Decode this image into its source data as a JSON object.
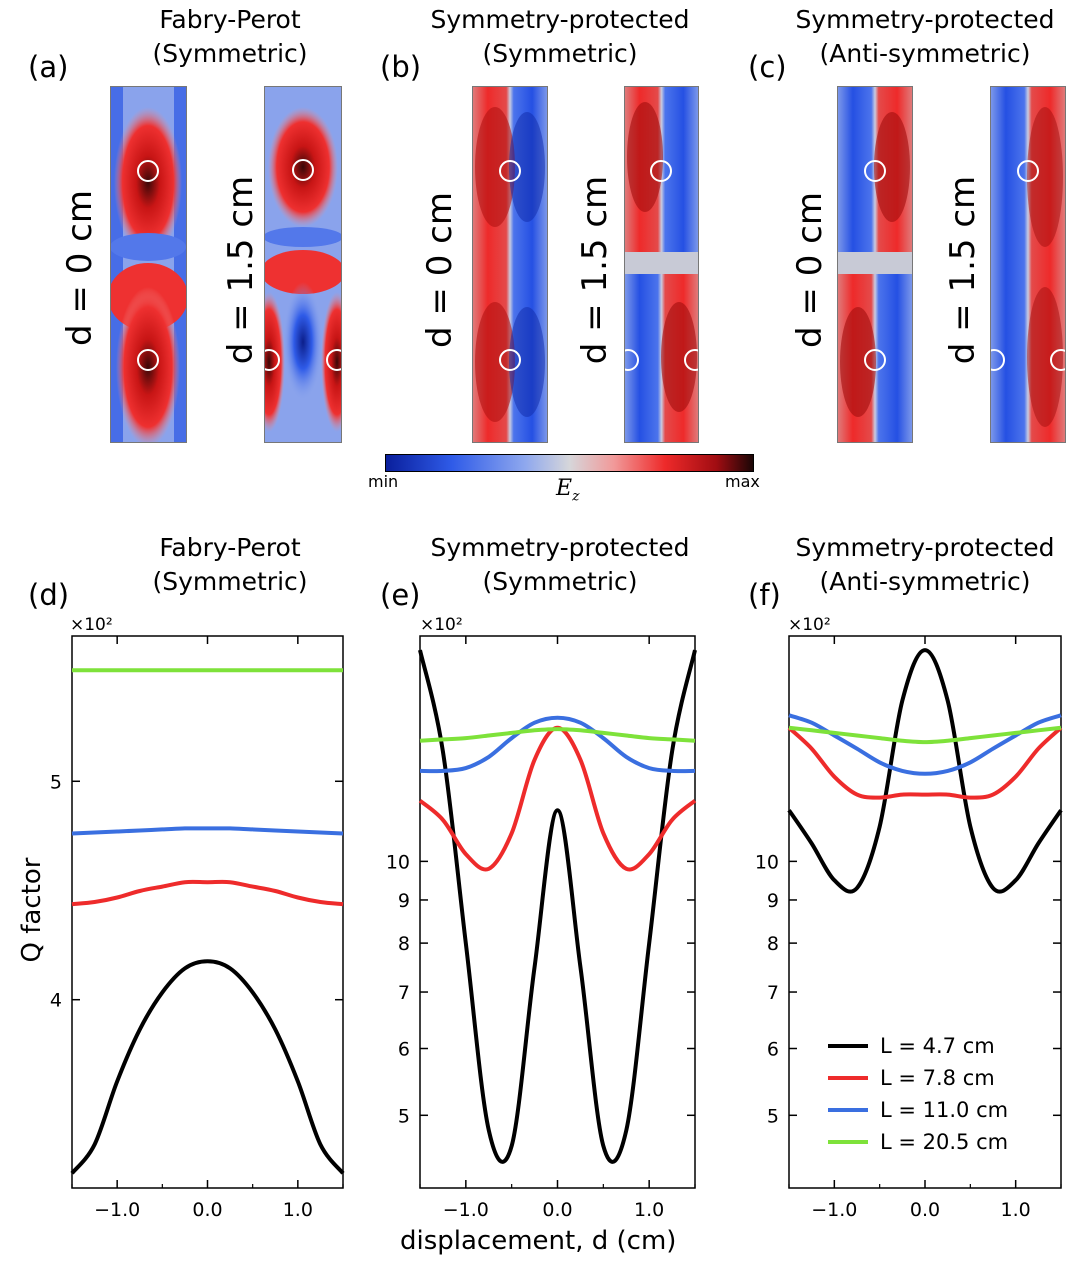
{
  "field_panels": [
    {
      "label": "(a)",
      "title_line1": "Fabry-Perot",
      "title_line2": "(Symmetric)",
      "left_d": "d = 0 cm",
      "right_d": "d = 1.5 cm"
    },
    {
      "label": "(b)",
      "title_line1": "Symmetry-protected",
      "title_line2": "(Symmetric)",
      "left_d": "d = 0 cm",
      "right_d": "d = 1.5 cm"
    },
    {
      "label": "(c)",
      "title_line1": "Symmetry-protected",
      "title_line2": "(Anti-symmetric)",
      "left_d": "d = 0 cm",
      "right_d": "d = 1.5 cm"
    }
  ],
  "colorbar": {
    "min": "min",
    "max": "max",
    "label": "E_z",
    "colors": [
      "#0a1f9c",
      "#2f5be8",
      "#d6d6da",
      "#ee2a2a",
      "#1a0606"
    ]
  },
  "plot_panels": [
    {
      "label": "(d)",
      "title_line1": "Fabry-Perot",
      "title_line2": "(Symmetric)",
      "multiplier": "×10²"
    },
    {
      "label": "(e)",
      "title_line1": "Symmetry-protected",
      "title_line2": "(Symmetric)",
      "multiplier": "×10²"
    },
    {
      "label": "(f)",
      "title_line1": "Symmetry-protected",
      "title_line2": "(Anti-symmetric)",
      "multiplier": "×10²"
    }
  ],
  "ylabel": "Q factor",
  "xlabel": "displacement, d (cm)",
  "legend": [
    {
      "label": "L = 4.7 cm",
      "color": "#000000"
    },
    {
      "label": "L = 7.8 cm",
      "color": "#ee2b2b"
    },
    {
      "label": "L = 11.0 cm",
      "color": "#3a6fe0"
    },
    {
      "label": "L = 20.5 cm",
      "color": "#7ee23a"
    }
  ],
  "chart_data": [
    {
      "type": "line",
      "panel": "d",
      "title": "Fabry-Perot (Symmetric)",
      "xlabel": "displacement, d (cm)",
      "ylabel": "Q factor",
      "xlim": [
        -1.5,
        1.5
      ],
      "ylim": [
        3.3,
        5.8
      ],
      "yscale": "log",
      "y_multiplier": "×10²",
      "xticks": [
        "−1.0",
        "0.0",
        "1.0"
      ],
      "yticks": [
        "4",
        "5"
      ],
      "x": [
        -1.5,
        -1.25,
        -1.0,
        -0.75,
        -0.5,
        -0.25,
        0.0,
        0.25,
        0.5,
        0.75,
        1.0,
        1.25,
        1.5
      ],
      "series": [
        {
          "name": "L = 4.7 cm",
          "values": [
            3.35,
            3.45,
            3.68,
            3.88,
            4.03,
            4.13,
            4.16,
            4.13,
            4.03,
            3.88,
            3.68,
            3.45,
            3.35
          ]
        },
        {
          "name": "L = 7.8 cm",
          "values": [
            4.41,
            4.42,
            4.44,
            4.47,
            4.49,
            4.51,
            4.51,
            4.51,
            4.49,
            4.47,
            4.44,
            4.42,
            4.41
          ]
        },
        {
          "name": "L = 11.0 cm",
          "values": [
            4.74,
            4.745,
            4.75,
            4.755,
            4.76,
            4.765,
            4.765,
            4.765,
            4.76,
            4.755,
            4.75,
            4.745,
            4.74
          ]
        },
        {
          "name": "L = 20.5 cm",
          "values": [
            5.6,
            5.6,
            5.6,
            5.6,
            5.6,
            5.6,
            5.6,
            5.6,
            5.6,
            5.6,
            5.6,
            5.6,
            5.6
          ]
        }
      ]
    },
    {
      "type": "line",
      "panel": "e",
      "title": "Symmetry-protected (Symmetric)",
      "xlabel": "displacement, d (cm)",
      "ylabel": "Q factor",
      "xlim": [
        -1.5,
        1.5
      ],
      "ylim": [
        4.1,
        18.5
      ],
      "yscale": "log",
      "y_multiplier": "×10²",
      "xticks": [
        "−1.0",
        "0.0",
        "1.0"
      ],
      "yticks": [
        "5",
        "6",
        "7",
        "8",
        "9",
        "10"
      ],
      "x": [
        -1.5,
        -1.25,
        -1.0,
        -0.75,
        -0.5,
        -0.25,
        0.0,
        0.25,
        0.5,
        0.75,
        1.0,
        1.25,
        1.5
      ],
      "series": [
        {
          "name": "L = 4.7 cm",
          "values": [
            17.8,
            13.5,
            8.0,
            4.8,
            4.6,
            7.5,
            11.5,
            7.5,
            4.6,
            4.8,
            8.0,
            13.5,
            17.8
          ]
        },
        {
          "name": "L = 7.8 cm",
          "values": [
            11.8,
            11.2,
            10.2,
            9.8,
            10.8,
            13.2,
            14.4,
            13.2,
            10.8,
            9.8,
            10.2,
            11.2,
            11.8
          ]
        },
        {
          "name": "L = 11.0 cm",
          "values": [
            12.8,
            12.8,
            12.9,
            13.3,
            14.0,
            14.6,
            14.8,
            14.6,
            14.0,
            13.3,
            12.9,
            12.8,
            12.8
          ]
        },
        {
          "name": "L = 20.5 cm",
          "values": [
            13.9,
            13.95,
            14.0,
            14.1,
            14.2,
            14.3,
            14.35,
            14.3,
            14.2,
            14.1,
            14.0,
            13.95,
            13.9
          ]
        }
      ]
    },
    {
      "type": "line",
      "panel": "f",
      "title": "Symmetry-protected (Anti-symmetric)",
      "xlabel": "displacement, d (cm)",
      "ylabel": "Q factor",
      "xlim": [
        -1.5,
        1.5
      ],
      "ylim": [
        4.1,
        18.5
      ],
      "yscale": "log",
      "y_multiplier": "×10²",
      "xticks": [
        "−1.0",
        "0.0",
        "1.0"
      ],
      "yticks": [
        "5",
        "6",
        "7",
        "8",
        "9",
        "10"
      ],
      "x": [
        -1.5,
        -1.25,
        -1.0,
        -0.75,
        -0.5,
        -0.25,
        0.0,
        0.25,
        0.5,
        0.75,
        1.0,
        1.25,
        1.5
      ],
      "series": [
        {
          "name": "L = 4.7 cm",
          "values": [
            11.5,
            10.5,
            9.5,
            9.3,
            11.0,
            15.5,
            17.8,
            15.5,
            11.0,
            9.3,
            9.5,
            10.5,
            11.5
          ]
        },
        {
          "name": "L = 7.8 cm",
          "values": [
            14.4,
            13.6,
            12.6,
            12.0,
            11.9,
            12.0,
            12.0,
            12.0,
            11.9,
            12.0,
            12.6,
            13.6,
            14.4
          ]
        },
        {
          "name": "L = 11.0 cm",
          "values": [
            14.9,
            14.6,
            14.1,
            13.6,
            13.1,
            12.8,
            12.7,
            12.8,
            13.1,
            13.6,
            14.1,
            14.6,
            14.9
          ]
        },
        {
          "name": "L = 20.5 cm",
          "values": [
            14.4,
            14.3,
            14.2,
            14.1,
            14.0,
            13.9,
            13.85,
            13.9,
            14.0,
            14.1,
            14.2,
            14.3,
            14.4
          ]
        }
      ]
    }
  ]
}
